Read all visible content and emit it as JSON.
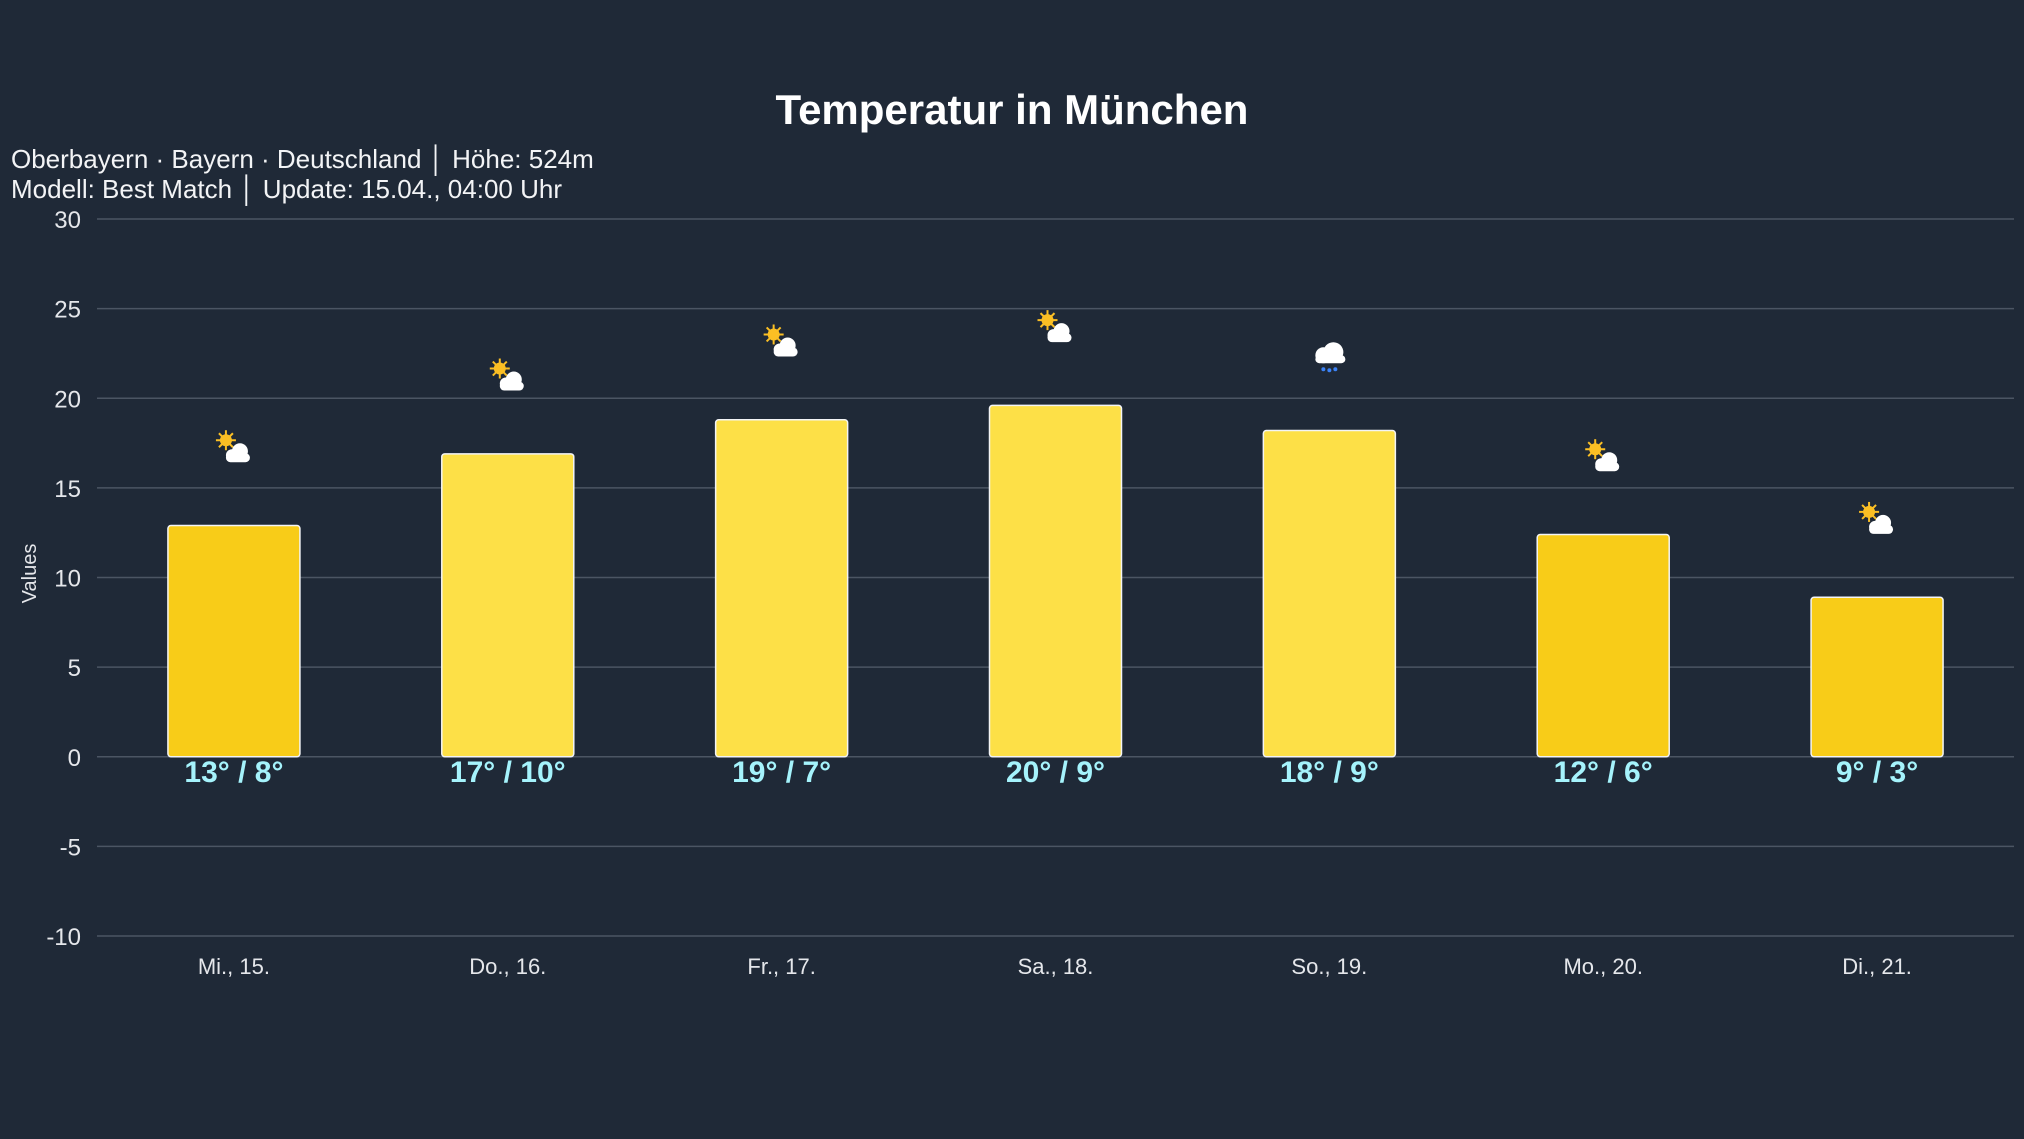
{
  "chart_data": {
    "type": "bar",
    "title": "Temperatur in München",
    "subtitle_lines": [
      "Oberbayern · Bayern · Deutschland │ Höhe: 524m",
      "Modell: Best Match │ Update: 15.04., 04:00 Uhr"
    ],
    "ylabel": "Values",
    "xlabel": "",
    "ylim": [
      -10,
      30
    ],
    "yticks": [
      30,
      25,
      20,
      15,
      10,
      5,
      0,
      -5,
      -10
    ],
    "grid": true,
    "categories": [
      "Mi., 15.",
      "Do., 16.",
      "Fr., 17.",
      "Sa., 18.",
      "So., 19.",
      "Mo., 20.",
      "Di., 21."
    ],
    "values": [
      12.9,
      16.9,
      18.8,
      19.6,
      18.2,
      12.4,
      8.9
    ],
    "data_labels": [
      "13° / 8°",
      "17° / 10°",
      "19° / 7°",
      "20° / 9°",
      "18° / 9°",
      "12° / 6°",
      "9° / 3°"
    ],
    "icons": [
      "sun-behind-cloud",
      "sun-behind-cloud",
      "sun-behind-cloud",
      "sun-behind-cloud",
      "rain-cloud",
      "sun-behind-cloud",
      "sun-behind-cloud"
    ],
    "bar_colors": [
      "#f8cc18",
      "#fde047",
      "#fde047",
      "#fde047",
      "#fde047",
      "#f8cc18",
      "#f8cc18"
    ],
    "label_color": "#a5f3fc"
  }
}
